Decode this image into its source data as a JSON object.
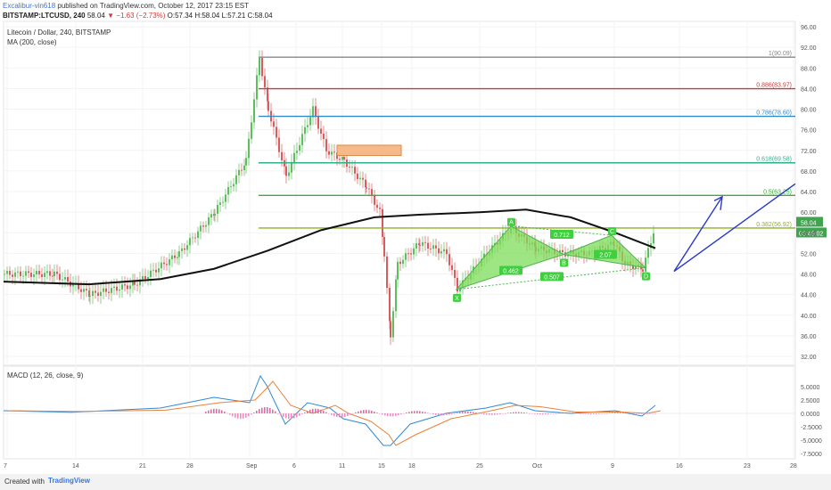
{
  "header": {
    "user": "Excalibur-vin618",
    "published": "published on TradingView.com, October 12, 2017 23:15 EST",
    "symbol": "BITSTAMP:LTCUSD, 240",
    "price": "58.04",
    "change": "−1.63 (−2.73%)",
    "ohlc": "O:57.34 H:58.04 L:57.21 C:58.04"
  },
  "legend": {
    "title": "Litecoin / Dollar, 240, BITSTAMP",
    "ma": "MA (200, close)",
    "macd": "MACD (12, 26, close, 9)"
  },
  "footer": {
    "created": "Created with",
    "brand": "TradingView"
  },
  "colors": {
    "up": "#5cbf5c",
    "down": "#d95c5c",
    "ma": "#111111",
    "pattern": "#7ddc5a",
    "arrow": "#2a3ac8"
  },
  "chart_data": {
    "type": "candlestick",
    "ylim": [
      30,
      96
    ],
    "yticks": [
      "96.00",
      "92.00",
      "88.00",
      "84.00",
      "80.00",
      "76.00",
      "72.00",
      "68.00",
      "64.00",
      "60.00",
      "56.00",
      "52.00",
      "48.00",
      "44.00",
      "40.00",
      "36.00",
      "32.00"
    ],
    "xticks": [
      "7",
      "14",
      "21",
      "28",
      "Sep",
      "6",
      "11",
      "15",
      "18",
      "25",
      "Oct",
      "9",
      "16",
      "23",
      "28"
    ],
    "last_price": "58.04",
    "countdown": "03:45:02",
    "fib": [
      {
        "label": "1(90.09)",
        "value": 90.09,
        "color": "#888888"
      },
      {
        "label": "0.886(83.97)",
        "value": 83.97,
        "color": "#c43b3b"
      },
      {
        "label": "0.786(78.60)",
        "value": 78.6,
        "color": "#2f8ac8"
      },
      {
        "label": "0.618(69.58)",
        "value": 69.58,
        "color": "#2fb08a"
      },
      {
        "label": "0.5(63.25)",
        "value": 63.25,
        "color": "#3dab3d"
      },
      {
        "label": "0.382(56.92)",
        "value": 56.92,
        "color": "#8cb322"
      }
    ],
    "harmonic_points": [
      {
        "label": "X",
        "value": 45.0
      },
      {
        "label": "A",
        "value": 57.3
      },
      {
        "label": "B",
        "value": 51.8
      },
      {
        "label": "C",
        "value": 55.5
      },
      {
        "label": "D",
        "value": 49.2
      }
    ],
    "ratios": [
      "0.712",
      "0.462",
      "2.07",
      "0.507"
    ],
    "macd": {
      "yticks": [
        "5.0000",
        "2.5000",
        "0.0000",
        "-2.5000",
        "-5.0000",
        "-7.5000"
      ],
      "ylim": [
        -7.5,
        7.5
      ]
    }
  }
}
